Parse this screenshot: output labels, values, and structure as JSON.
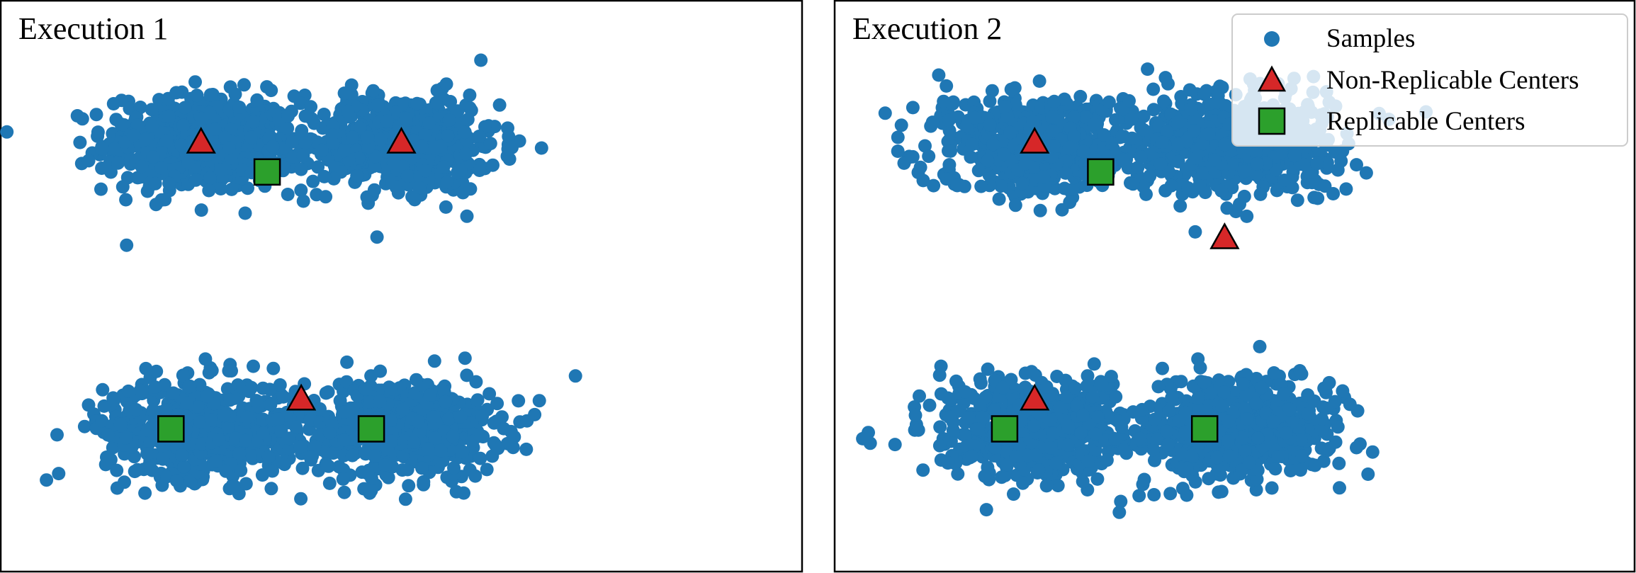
{
  "chart_data": [
    {
      "type": "scatter",
      "title": "Execution 1",
      "xlabel": "",
      "ylabel": "",
      "xlim": [
        -2.0,
        2.0
      ],
      "ylim": [
        -2.0,
        2.0
      ],
      "grid": false,
      "clusters": [
        {
          "center": [
            -1.0,
            1.0
          ],
          "spread": [
            0.24,
            0.17
          ],
          "count": 600
        },
        {
          "center": [
            0.0,
            1.0
          ],
          "spread": [
            0.24,
            0.17
          ],
          "count": 600
        },
        {
          "center": [
            -1.0,
            -1.0
          ],
          "spread": [
            0.24,
            0.17
          ],
          "count": 600
        },
        {
          "center": [
            0.0,
            -1.0
          ],
          "spread": [
            0.24,
            0.17
          ],
          "count": 600
        }
      ],
      "non_replicable_centers": [
        [
          -1.0,
          1.0
        ],
        [
          0.0,
          1.0
        ],
        [
          -0.5,
          -0.8
        ]
      ],
      "replicable_centers": [
        [
          -0.67,
          0.8
        ],
        [
          -1.15,
          -1.0
        ],
        [
          -0.15,
          -1.0
        ]
      ]
    },
    {
      "type": "scatter",
      "title": "Execution 2",
      "xlabel": "",
      "ylabel": "",
      "xlim": [
        -2.0,
        2.0
      ],
      "ylim": [
        -2.0,
        2.0
      ],
      "grid": false,
      "clusters": [
        {
          "center": [
            -1.0,
            1.0
          ],
          "spread": [
            0.24,
            0.17
          ],
          "count": 600
        },
        {
          "center": [
            0.0,
            1.0
          ],
          "spread": [
            0.24,
            0.17
          ],
          "count": 600
        },
        {
          "center": [
            -1.0,
            -1.0
          ],
          "spread": [
            0.24,
            0.17
          ],
          "count": 600
        },
        {
          "center": [
            0.0,
            -1.0
          ],
          "spread": [
            0.24,
            0.17
          ],
          "count": 600
        }
      ],
      "non_replicable_centers": [
        [
          -1.0,
          1.0
        ],
        [
          -1.0,
          -0.8
        ],
        [
          -0.05,
          0.33
        ]
      ],
      "replicable_centers": [
        [
          -0.67,
          0.8
        ],
        [
          -1.15,
          -1.0
        ],
        [
          -0.15,
          -1.0
        ]
      ]
    }
  ],
  "legend": {
    "placement": "top-right of Execution 2",
    "entries": [
      {
        "label": "Samples",
        "marker": "circle",
        "color": "#1f77b4"
      },
      {
        "label": "Non-Replicable Centers",
        "marker": "triangle",
        "color": "#d62728"
      },
      {
        "label": "Replicable Centers",
        "marker": "square",
        "color": "#2ca02c"
      }
    ]
  },
  "colors": {
    "samples": "#1f77b4",
    "non_replicable": "#d62728",
    "replicable": "#2ca02c",
    "edge": "#000000"
  }
}
